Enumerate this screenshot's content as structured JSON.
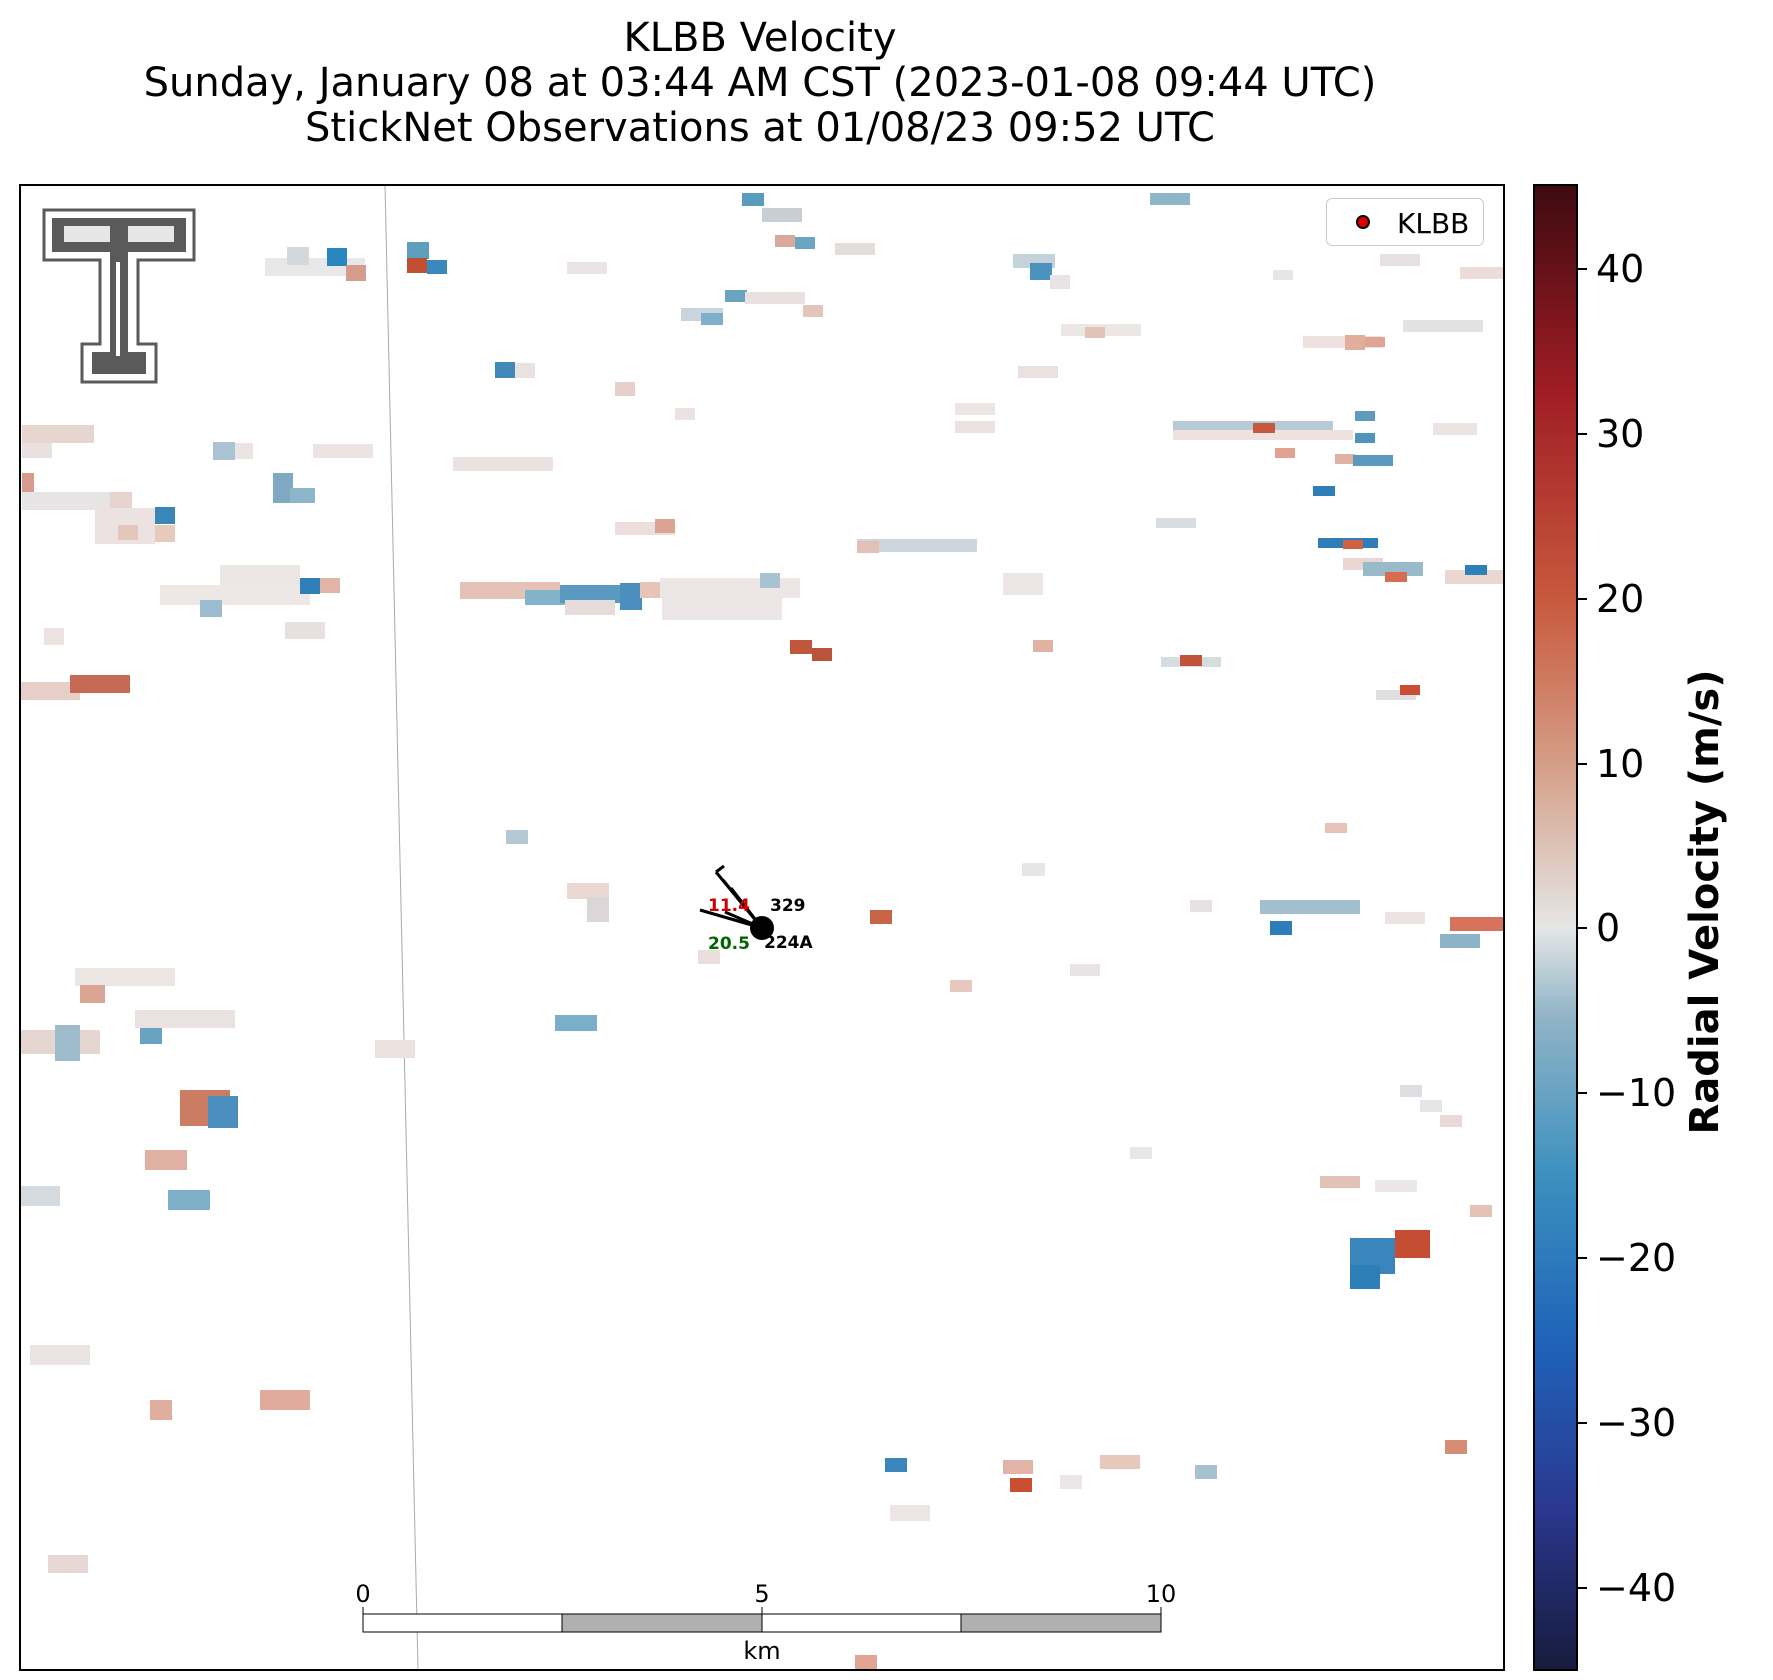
{
  "header": {
    "title_line1": "KLBB Velocity",
    "title_line2": "Sunday, January 08 at 03:44 AM CST (2023-01-08 09:44 UTC)",
    "title_line3": "StickNet Observations at 01/08/23 09:52 UTC"
  },
  "logo": {
    "icon": "texas-tech-double-t-logo",
    "color": "#5a5a5a"
  },
  "legend": {
    "label": "KLBB",
    "marker_color": "#e00000"
  },
  "stations": [
    {
      "id": "329",
      "temperature": "11.4",
      "temperature_color": "#cc0000"
    },
    {
      "id": "224A",
      "dewpoint": "20.5",
      "dewpoint_color": "#006400"
    }
  ],
  "scalebar": {
    "labels": [
      "0",
      "5",
      "10"
    ],
    "unit": "km",
    "fill_colors": [
      "#ffffff",
      "#b0b0b0"
    ]
  },
  "colorbar": {
    "label": "Radial Velocity (m/s)",
    "range": [
      -45,
      45
    ],
    "ticks": [
      "40",
      "30",
      "20",
      "10",
      "0",
      "−10",
      "−20",
      "−30",
      "−40"
    ],
    "colors": [
      "#171b3c",
      "#2a3890",
      "#1f63b8",
      "#3a8fbf",
      "#91b4c6",
      "#e5e6e6",
      "#d59e87",
      "#c8593e",
      "#a11d24",
      "#3d0a10"
    ]
  }
}
